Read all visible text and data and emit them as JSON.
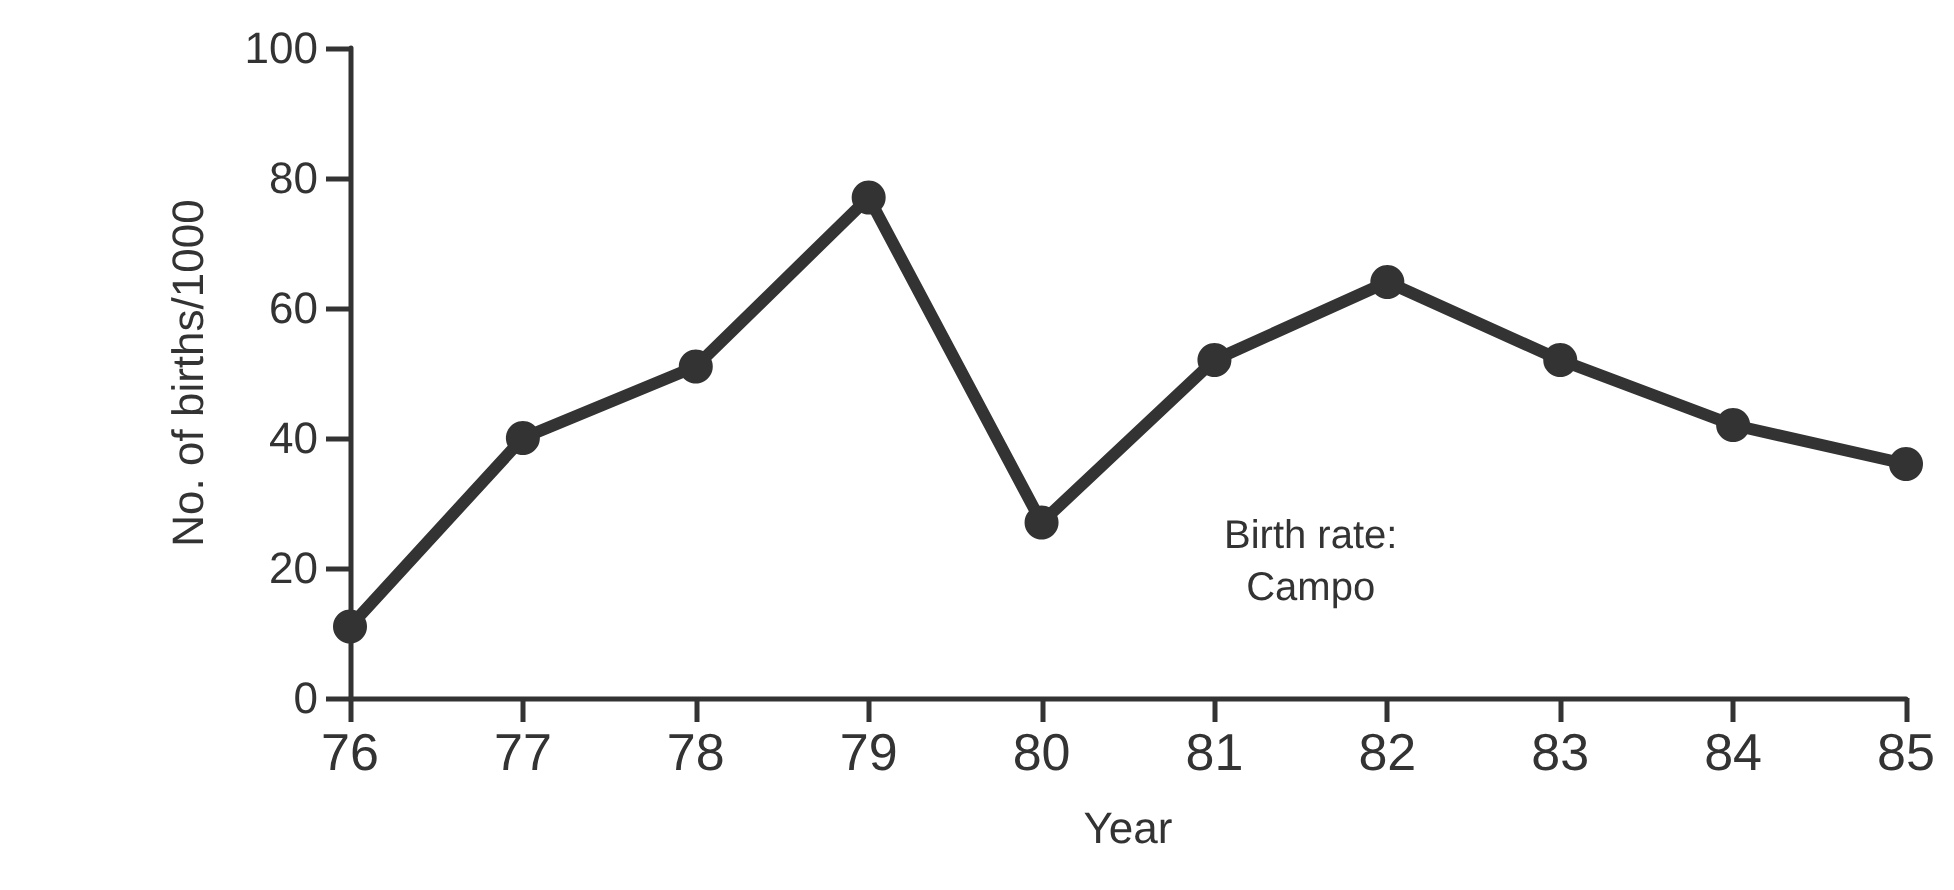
{
  "chart_data": {
    "type": "line",
    "xlabel": "Year",
    "ylabel": "No. of births/1000",
    "x": [
      76,
      77,
      78,
      79,
      80,
      81,
      82,
      83,
      84,
      85
    ],
    "series": [
      {
        "name": "Birth rate:\nCampo",
        "color": "#333333",
        "values": [
          11,
          40,
          51,
          77,
          27,
          52,
          64,
          52,
          42,
          36
        ]
      }
    ],
    "xlim": [
      76,
      85
    ],
    "xticks": [
      76,
      77,
      78,
      79,
      80,
      81,
      82,
      83,
      84,
      85
    ],
    "ylim": [
      0,
      100
    ],
    "yticks": [
      0,
      20,
      40,
      60,
      80,
      100
    ],
    "grid": false,
    "legend": false,
    "marker": "circle",
    "line_style": "solid"
  }
}
